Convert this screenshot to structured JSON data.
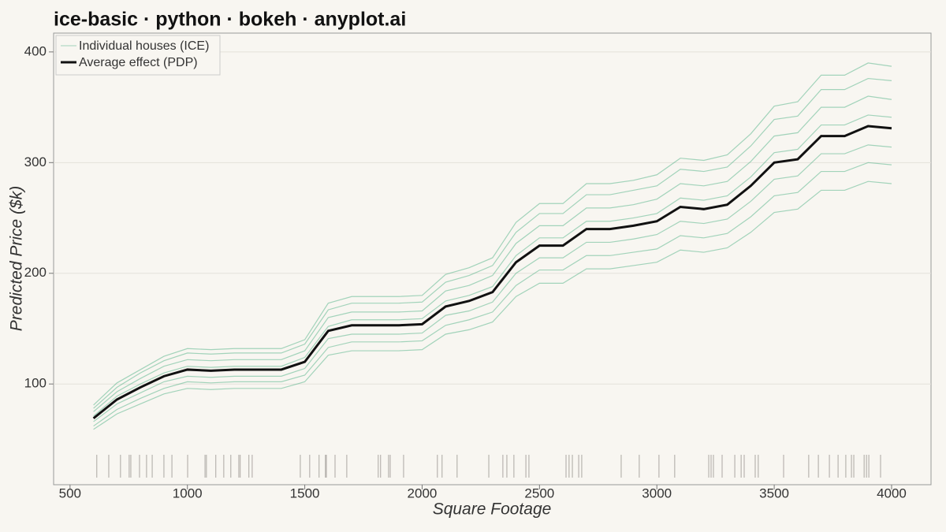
{
  "chart_data": {
    "type": "ice",
    "title": "ice-basic · python · bokeh · anyplot.ai",
    "x_label": "Square Footage",
    "y_label": "Predicted Price ($k)",
    "x": [
      600,
      700,
      800,
      900,
      1000,
      1100,
      1200,
      1300,
      1400,
      1500,
      1600,
      1700,
      1800,
      1900,
      2000,
      2100,
      2200,
      2300,
      2400,
      2500,
      2600,
      2700,
      2800,
      2900,
      3000,
      3100,
      3200,
      3300,
      3400,
      3500,
      3600,
      3700,
      3800,
      3900,
      4000
    ],
    "ice": {
      "name": "Individual houses (ICE)",
      "color": "#3aa878",
      "lines": [
        [
          59,
          73,
          82,
          91,
          96,
          95,
          96,
          96,
          96,
          102,
          126,
          130,
          130,
          130,
          131,
          145,
          149,
          156,
          179,
          191,
          191,
          204,
          204,
          207,
          210,
          221,
          219,
          223,
          237,
          255,
          258,
          275,
          275,
          283,
          281
        ],
        [
          62,
          77,
          87,
          96,
          102,
          101,
          102,
          102,
          102,
          108,
          133,
          138,
          138,
          138,
          139,
          153,
          158,
          165,
          189,
          203,
          203,
          216,
          216,
          219,
          222,
          234,
          232,
          236,
          251,
          270,
          273,
          292,
          292,
          300,
          298
        ],
        [
          66,
          82,
          92,
          102,
          107,
          106,
          107,
          107,
          107,
          114,
          141,
          145,
          145,
          145,
          146,
          162,
          166,
          174,
          200,
          214,
          214,
          228,
          228,
          231,
          235,
          247,
          245,
          249,
          265,
          285,
          288,
          308,
          308,
          316,
          314
        ],
        [
          71,
          89,
          100,
          110,
          116,
          115,
          116,
          116,
          116,
          124,
          152,
          158,
          158,
          158,
          159,
          175,
          180,
          188,
          216,
          232,
          232,
          247,
          247,
          250,
          254,
          268,
          266,
          270,
          287,
          309,
          312,
          334,
          334,
          343,
          341
        ],
        [
          75,
          93,
          105,
          116,
          122,
          121,
          122,
          122,
          122,
          130,
          160,
          165,
          165,
          165,
          166,
          184,
          189,
          198,
          227,
          243,
          243,
          259,
          259,
          262,
          267,
          281,
          279,
          283,
          301,
          324,
          327,
          350,
          350,
          360,
          357
        ],
        [
          78,
          97,
          110,
          121,
          128,
          127,
          128,
          128,
          128,
          136,
          167,
          173,
          173,
          173,
          174,
          192,
          198,
          207,
          237,
          254,
          254,
          271,
          271,
          275,
          279,
          294,
          292,
          296,
          315,
          339,
          342,
          366,
          366,
          376,
          374
        ],
        [
          81,
          101,
          113,
          125,
          132,
          131,
          132,
          132,
          132,
          140,
          173,
          179,
          179,
          179,
          180,
          199,
          205,
          214,
          246,
          263,
          263,
          281,
          281,
          284,
          289,
          304,
          302,
          307,
          326,
          351,
          355,
          379,
          379,
          390,
          387
        ]
      ]
    },
    "pdp": {
      "name": "Average effect (PDP)",
      "color": "#111111",
      "values": [
        69,
        86,
        97,
        107,
        113,
        112,
        113,
        113,
        113,
        120,
        148,
        153,
        153,
        153,
        154,
        170,
        175,
        183,
        210,
        225,
        225,
        240,
        240,
        243,
        247,
        260,
        258,
        262,
        279,
        300,
        303,
        324,
        324,
        333,
        331
      ]
    },
    "rug": [
      614,
      665,
      715,
      752,
      759,
      796,
      826,
      850,
      900,
      934,
      1001,
      1075,
      1081,
      1121,
      1155,
      1185,
      1219,
      1225,
      1262,
      1276,
      1481,
      1521,
      1561,
      1588,
      1592,
      1629,
      1679,
      1813,
      1823,
      1857,
      1864,
      1921,
      2065,
      2085,
      2149,
      2284,
      2344,
      2361,
      2391,
      2442,
      2455,
      2613,
      2626,
      2640,
      2667,
      2680,
      2848,
      2925,
      3009,
      3076,
      3221,
      3231,
      3241,
      3278,
      3332,
      3359,
      3372,
      3419,
      3432,
      3540,
      3647,
      3688,
      3735,
      3772,
      3805,
      3829,
      3839,
      3883,
      3893,
      3903,
      3953
    ],
    "xlim": [
      430,
      4168
    ],
    "ylim": [
      9,
      417
    ],
    "xticks": [
      500,
      1000,
      1500,
      2000,
      2500,
      3000,
      3500,
      4000
    ],
    "yticks": [
      100,
      200,
      300,
      400
    ],
    "grid": true,
    "legend": "top-left"
  }
}
